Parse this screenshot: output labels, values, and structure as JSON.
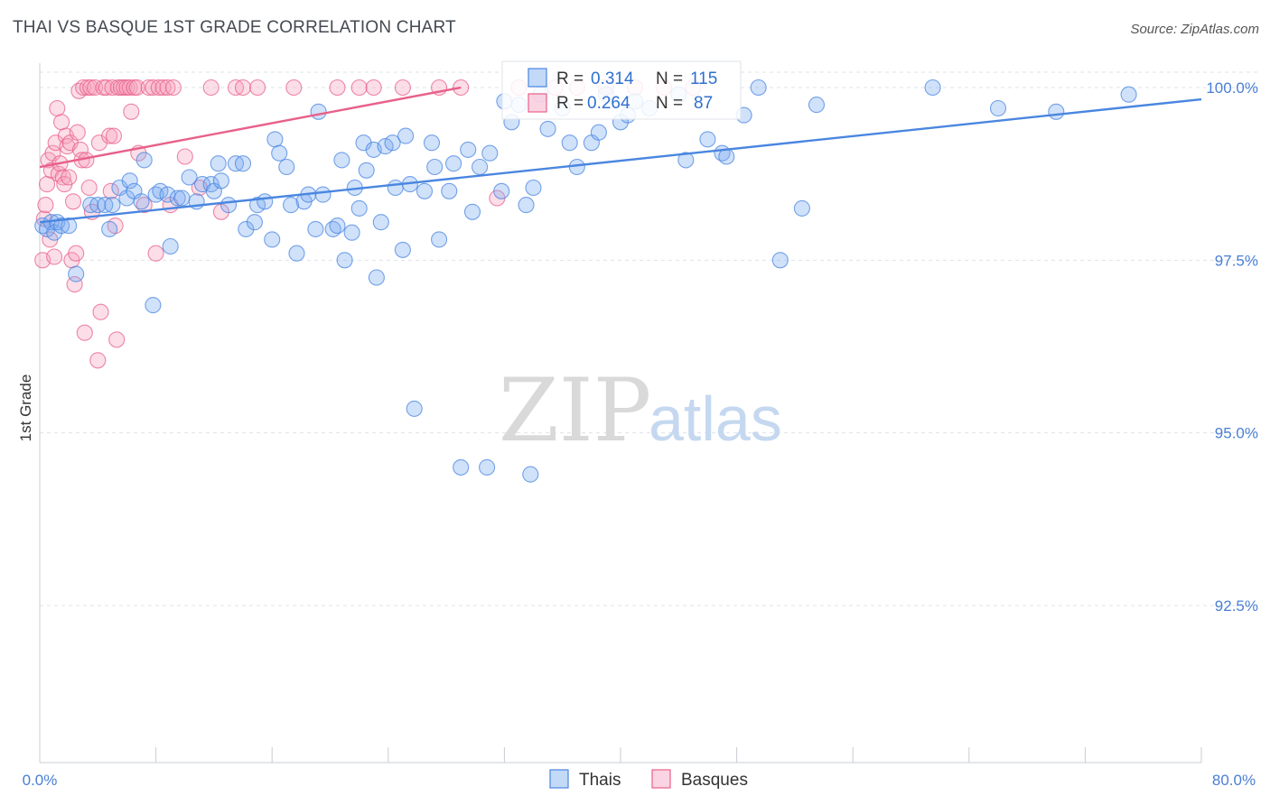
{
  "header": {
    "title": "THAI VS BASQUE 1ST GRADE CORRELATION CHART",
    "source": "Source: ZipAtlas.com"
  },
  "watermark": {
    "zip": "ZIP",
    "atlas": "atlas"
  },
  "colors": {
    "thais": "#4a86e0",
    "thais_fill": "rgba(120,170,240,0.35)",
    "basques": "#e8608a",
    "basques_fill": "rgba(245,160,190,0.35)",
    "tick": "#4a7fd4",
    "grid": "#dde3ea"
  },
  "stats": {
    "thais": {
      "r_label": "R =",
      "r": "0.314",
      "n_label": "N =",
      "n": "115"
    },
    "basques": {
      "r_label": "R =",
      "r": "0.264",
      "n_label": "N =",
      "n": "87"
    }
  },
  "chart_data": {
    "type": "scatter",
    "title": "THAI VS BASQUE 1ST GRADE CORRELATION CHART",
    "xlabel": "",
    "ylabel": "1st Grade",
    "xlim": [
      0,
      80
    ],
    "ylim": [
      90.0,
      100.2
    ],
    "x_tick_labels": [
      "0.0%",
      "80.0%"
    ],
    "y_ticks": [
      92.5,
      95.0,
      97.5,
      100.0
    ],
    "y_tick_labels": [
      "92.5%",
      "95.0%",
      "97.5%",
      "100.0%"
    ],
    "legend": [
      "Thais",
      "Basques"
    ],
    "series": [
      {
        "name": "Thais",
        "trend": {
          "x": [
            0,
            80
          ],
          "y": [
            98.05,
            99.83
          ]
        },
        "points": [
          [
            0.2,
            98.0
          ],
          [
            0.5,
            97.95
          ],
          [
            0.8,
            98.05
          ],
          [
            1.0,
            97.9
          ],
          [
            1.2,
            98.05
          ],
          [
            1.5,
            98.0
          ],
          [
            2.0,
            98.0
          ],
          [
            2.5,
            97.3
          ],
          [
            3.5,
            98.3
          ],
          [
            4.0,
            98.3
          ],
          [
            4.5,
            98.3
          ],
          [
            4.8,
            97.95
          ],
          [
            5.0,
            98.3
          ],
          [
            5.5,
            98.55
          ],
          [
            6.0,
            98.4
          ],
          [
            6.2,
            98.65
          ],
          [
            6.5,
            98.5
          ],
          [
            7.0,
            98.35
          ],
          [
            7.2,
            98.95
          ],
          [
            7.8,
            96.85
          ],
          [
            8.0,
            98.45
          ],
          [
            8.3,
            98.5
          ],
          [
            8.8,
            98.45
          ],
          [
            9.0,
            97.7
          ],
          [
            9.5,
            98.4
          ],
          [
            9.8,
            98.4
          ],
          [
            10.3,
            98.7
          ],
          [
            10.8,
            98.35
          ],
          [
            11.2,
            98.6
          ],
          [
            11.8,
            98.6
          ],
          [
            12.0,
            98.5
          ],
          [
            12.3,
            98.9
          ],
          [
            12.5,
            98.65
          ],
          [
            13.0,
            98.3
          ],
          [
            13.5,
            98.9
          ],
          [
            14.0,
            98.9
          ],
          [
            14.2,
            97.95
          ],
          [
            14.8,
            98.05
          ],
          [
            15.0,
            98.3
          ],
          [
            15.5,
            98.35
          ],
          [
            16.0,
            97.8
          ],
          [
            16.2,
            99.25
          ],
          [
            16.5,
            99.05
          ],
          [
            17.0,
            98.85
          ],
          [
            17.3,
            98.3
          ],
          [
            17.7,
            97.6
          ],
          [
            18.2,
            98.35
          ],
          [
            18.5,
            98.45
          ],
          [
            19.0,
            97.95
          ],
          [
            19.2,
            99.65
          ],
          [
            19.5,
            98.45
          ],
          [
            20.2,
            97.95
          ],
          [
            20.5,
            98.0
          ],
          [
            20.8,
            98.95
          ],
          [
            21.0,
            97.5
          ],
          [
            21.5,
            97.9
          ],
          [
            21.7,
            98.55
          ],
          [
            22.0,
            98.25
          ],
          [
            22.3,
            99.2
          ],
          [
            22.5,
            98.8
          ],
          [
            23.0,
            99.1
          ],
          [
            23.2,
            97.25
          ],
          [
            23.5,
            98.05
          ],
          [
            23.8,
            99.15
          ],
          [
            24.3,
            99.2
          ],
          [
            24.5,
            98.55
          ],
          [
            25.0,
            97.65
          ],
          [
            25.2,
            99.3
          ],
          [
            25.5,
            98.6
          ],
          [
            25.8,
            95.35
          ],
          [
            26.5,
            98.5
          ],
          [
            27.0,
            99.2
          ],
          [
            27.2,
            98.85
          ],
          [
            27.5,
            97.8
          ],
          [
            28.2,
            98.5
          ],
          [
            28.5,
            98.9
          ],
          [
            29.0,
            94.5
          ],
          [
            29.5,
            99.1
          ],
          [
            29.8,
            98.2
          ],
          [
            30.3,
            98.85
          ],
          [
            30.8,
            94.5
          ],
          [
            31.0,
            99.05
          ],
          [
            31.8,
            98.5
          ],
          [
            32.0,
            99.8
          ],
          [
            32.5,
            99.5
          ],
          [
            33.0,
            99.75
          ],
          [
            33.5,
            98.3
          ],
          [
            33.8,
            94.4
          ],
          [
            34.0,
            98.55
          ],
          [
            34.5,
            99.9
          ],
          [
            35.0,
            99.4
          ],
          [
            36.0,
            99.7
          ],
          [
            36.5,
            99.2
          ],
          [
            37.0,
            98.85
          ],
          [
            38.0,
            99.2
          ],
          [
            38.5,
            99.35
          ],
          [
            39.0,
            99.9
          ],
          [
            40.0,
            99.5
          ],
          [
            40.5,
            99.6
          ],
          [
            41.0,
            99.8
          ],
          [
            42.0,
            99.7
          ],
          [
            44.0,
            99.9
          ],
          [
            44.5,
            98.95
          ],
          [
            46.0,
            99.25
          ],
          [
            47.0,
            99.05
          ],
          [
            47.3,
            99.0
          ],
          [
            48.5,
            99.6
          ],
          [
            49.5,
            100.0
          ],
          [
            51.0,
            97.5
          ],
          [
            52.5,
            98.25
          ],
          [
            53.5,
            99.75
          ],
          [
            61.5,
            100.0
          ],
          [
            66.0,
            99.7
          ],
          [
            70.0,
            99.65
          ],
          [
            75.0,
            99.9
          ]
        ]
      },
      {
        "name": "Basques",
        "trend": {
          "x": [
            0,
            29
          ],
          "y": [
            98.85,
            100.0
          ]
        },
        "points": [
          [
            0.2,
            97.5
          ],
          [
            0.3,
            98.1
          ],
          [
            0.4,
            98.3
          ],
          [
            0.5,
            98.6
          ],
          [
            0.6,
            98.95
          ],
          [
            0.7,
            97.8
          ],
          [
            0.8,
            98.8
          ],
          [
            0.9,
            99.05
          ],
          [
            1.0,
            97.55
          ],
          [
            1.1,
            99.2
          ],
          [
            1.2,
            99.7
          ],
          [
            1.3,
            98.75
          ],
          [
            1.4,
            98.9
          ],
          [
            1.5,
            99.5
          ],
          [
            1.6,
            98.7
          ],
          [
            1.7,
            98.6
          ],
          [
            1.8,
            99.3
          ],
          [
            1.9,
            99.15
          ],
          [
            2.0,
            98.7
          ],
          [
            2.1,
            99.2
          ],
          [
            2.2,
            97.5
          ],
          [
            2.3,
            98.35
          ],
          [
            2.4,
            97.15
          ],
          [
            2.5,
            97.6
          ],
          [
            2.6,
            99.35
          ],
          [
            2.7,
            99.95
          ],
          [
            2.8,
            99.1
          ],
          [
            2.9,
            98.95
          ],
          [
            3.0,
            100.0
          ],
          [
            3.1,
            96.45
          ],
          [
            3.2,
            98.95
          ],
          [
            3.3,
            100.0
          ],
          [
            3.4,
            98.55
          ],
          [
            3.5,
            100.0
          ],
          [
            3.6,
            98.2
          ],
          [
            3.8,
            100.0
          ],
          [
            4.0,
            96.05
          ],
          [
            4.1,
            99.2
          ],
          [
            4.2,
            96.75
          ],
          [
            4.4,
            100.0
          ],
          [
            4.6,
            100.0
          ],
          [
            4.8,
            99.3
          ],
          [
            4.9,
            98.5
          ],
          [
            5.0,
            100.0
          ],
          [
            5.1,
            99.3
          ],
          [
            5.2,
            98.0
          ],
          [
            5.3,
            96.35
          ],
          [
            5.4,
            100.0
          ],
          [
            5.6,
            100.0
          ],
          [
            5.8,
            100.0
          ],
          [
            6.0,
            100.0
          ],
          [
            6.2,
            100.0
          ],
          [
            6.3,
            99.65
          ],
          [
            6.5,
            100.0
          ],
          [
            6.7,
            100.0
          ],
          [
            6.8,
            99.05
          ],
          [
            7.2,
            98.3
          ],
          [
            7.5,
            100.0
          ],
          [
            7.8,
            100.0
          ],
          [
            8.0,
            97.6
          ],
          [
            8.2,
            100.0
          ],
          [
            8.5,
            100.0
          ],
          [
            8.8,
            100.0
          ],
          [
            9.0,
            98.3
          ],
          [
            9.2,
            100.0
          ],
          [
            10.0,
            99.0
          ],
          [
            11.0,
            98.55
          ],
          [
            11.8,
            100.0
          ],
          [
            12.5,
            98.2
          ],
          [
            13.5,
            100.0
          ],
          [
            14.0,
            100.0
          ],
          [
            15.0,
            100.0
          ],
          [
            17.5,
            100.0
          ],
          [
            20.5,
            100.0
          ],
          [
            22.0,
            100.0
          ],
          [
            23.0,
            100.0
          ],
          [
            25.0,
            100.0
          ],
          [
            27.5,
            100.0
          ],
          [
            29.0,
            100.0
          ],
          [
            31.5,
            98.4
          ],
          [
            33.0,
            100.0
          ],
          [
            35.5,
            100.0
          ],
          [
            37.0,
            100.0
          ],
          [
            39.0,
            100.0
          ],
          [
            41.0,
            100.0
          ],
          [
            43.0,
            100.0
          ],
          [
            45.0,
            100.0
          ]
        ]
      }
    ]
  }
}
